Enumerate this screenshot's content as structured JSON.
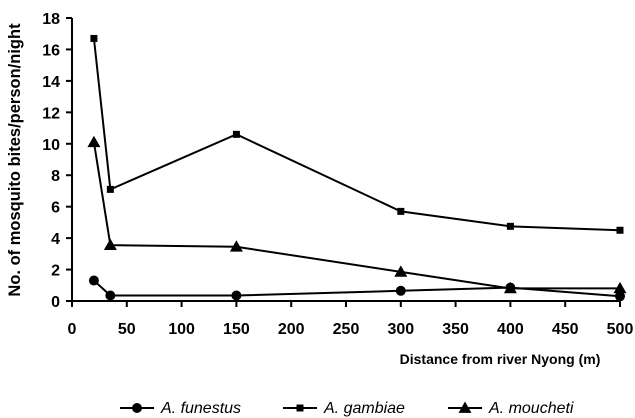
{
  "chart_data": {
    "type": "line",
    "title": "",
    "xlabel": "Distance from river Nyong (m)",
    "ylabel": "No. of mosquito bites/person/night",
    "xlim": [
      0,
      500
    ],
    "ylim": [
      0,
      18
    ],
    "xticks": [
      0,
      50,
      100,
      150,
      200,
      250,
      300,
      350,
      400,
      450,
      500
    ],
    "yticks": [
      0,
      2,
      4,
      6,
      8,
      10,
      12,
      14,
      16,
      18
    ],
    "grid": false,
    "legend_position": "bottom",
    "series": [
      {
        "name": "A. funestus",
        "marker": "circle",
        "color": "#000000",
        "x": [
          20,
          35,
          150,
          300,
          400,
          500
        ],
        "y": [
          1.3,
          0.35,
          0.35,
          0.65,
          0.85,
          0.3
        ]
      },
      {
        "name": "A. gambiae",
        "marker": "square",
        "color": "#000000",
        "x": [
          20,
          35,
          150,
          300,
          400,
          500
        ],
        "y": [
          16.7,
          7.1,
          10.6,
          5.7,
          4.75,
          4.5
        ]
      },
      {
        "name": "A. moucheti",
        "marker": "triangle",
        "color": "#000000",
        "x": [
          20,
          35,
          150,
          300,
          400,
          500
        ],
        "y": [
          10.1,
          3.55,
          3.45,
          1.85,
          0.8,
          0.8
        ]
      }
    ]
  }
}
